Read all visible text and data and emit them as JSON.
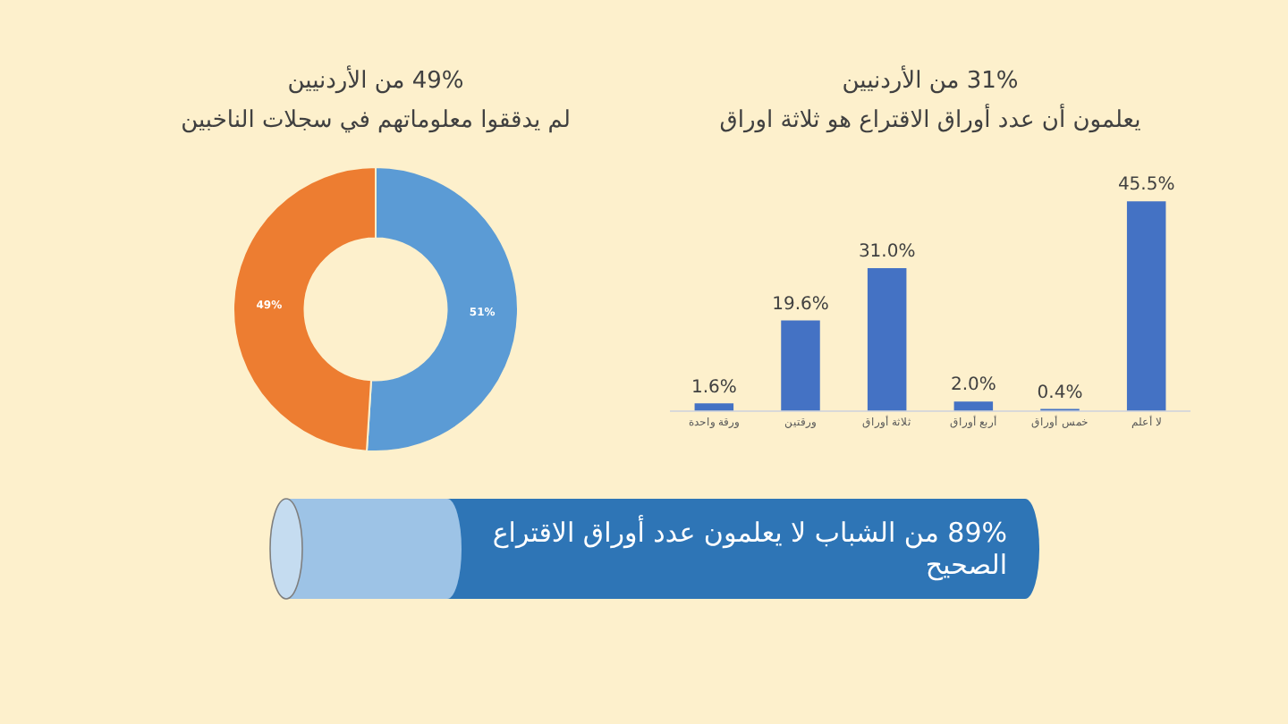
{
  "chart_data": [
    {
      "type": "bar",
      "title": "31% من الأردنيين",
      "subtitle": "يعلمون أن عدد أوراق الاقتراع هو ثلاثة اوراق",
      "categories": [
        "ورقة واحدة",
        "ورقتين",
        "ثلاثة أوراق",
        "أربع أوراق",
        "خمس أوراق",
        "لا أعلم"
      ],
      "values": [
        1.6,
        19.6,
        31.0,
        2.0,
        0.4,
        45.5
      ],
      "value_labels": [
        "1.6%",
        "19.6%",
        "31.0%",
        "2.0%",
        "0.4%",
        "45.5%"
      ],
      "color": "#4472c4",
      "tick_labels": "x",
      "grid": false,
      "legend": false
    },
    {
      "type": "donut",
      "title": "49% من الأردنيين",
      "subtitle": "لم يدققوا معلوماتهم في سجلات الناخبين",
      "categories": [
        null,
        null
      ],
      "values": [
        51,
        49
      ],
      "value_labels": [
        "51%",
        "49%"
      ],
      "colors": [
        "#5b9bd5",
        "#ed7d31"
      ],
      "legend": false
    },
    {
      "type": "other",
      "annotations": [
        "89% من الشباب لا يعلمون عدد أوراق الاقتراع الصحيح"
      ]
    }
  ]
}
